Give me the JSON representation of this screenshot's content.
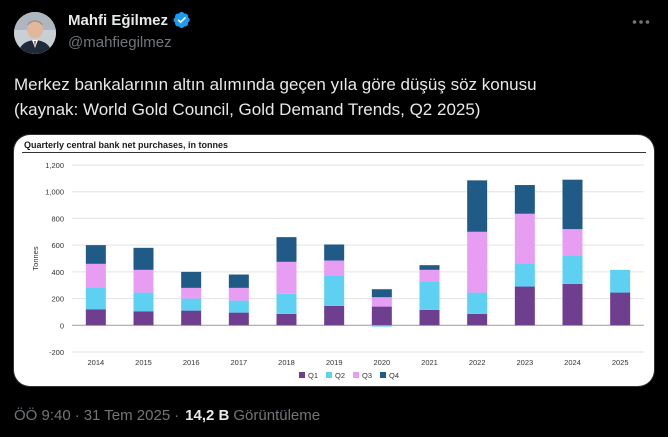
{
  "author": {
    "display_name": "Mahfi Eğilmez",
    "handle": "@mahfiegilmez",
    "verified": true
  },
  "icons": {
    "verified": "verified-badge-icon",
    "more": "more-options-icon"
  },
  "tweet": {
    "text_line1": "Merkez bankalarının altın alımında geçen yıla göre düşüş söz konusu",
    "text_line2": "(kaynak: World Gold Council, Gold Demand Trends, Q2 2025)"
  },
  "footer": {
    "time": "ÖÖ 9:40",
    "separator": "·",
    "date": "31 Tem 2025",
    "views_count": "14,2 B",
    "views_label": "Görüntüleme"
  },
  "colors": {
    "Q1": "#6f3f8f",
    "Q2": "#5ed0f2",
    "Q3": "#e69df2",
    "Q4": "#205a86",
    "verified": "#1d9bf0"
  },
  "chart_data": {
    "type": "bar",
    "stacked": true,
    "title": "Quarterly central bank net purchases, in tonnes",
    "ylabel": "Tonnes",
    "xlabel": "",
    "ylim": [
      -200,
      1200
    ],
    "yticks": [
      -200,
      0,
      200,
      400,
      600,
      800,
      1000,
      1200
    ],
    "ytick_labels": [
      "-200",
      "0",
      "200",
      "400",
      "600",
      "800",
      "1,000",
      "1,200"
    ],
    "grid": true,
    "legend": "bottom-center",
    "categories": [
      "2014",
      "2015",
      "2016",
      "2017",
      "2018",
      "2019",
      "2020",
      "2021",
      "2022",
      "2023",
      "2024",
      "2025"
    ],
    "series": [
      {
        "name": "Q1",
        "values": [
          120,
          105,
          110,
          95,
          85,
          145,
          140,
          115,
          85,
          290,
          310,
          245
        ]
      },
      {
        "name": "Q2",
        "values": [
          165,
          140,
          90,
          90,
          150,
          230,
          -10,
          215,
          160,
          175,
          215,
          170
        ]
      },
      {
        "name": "Q3",
        "values": [
          175,
          170,
          80,
          95,
          240,
          110,
          70,
          85,
          455,
          370,
          195,
          0
        ]
      },
      {
        "name": "Q4",
        "values": [
          140,
          165,
          120,
          100,
          185,
          120,
          60,
          35,
          385,
          215,
          370,
          0
        ]
      }
    ]
  }
}
